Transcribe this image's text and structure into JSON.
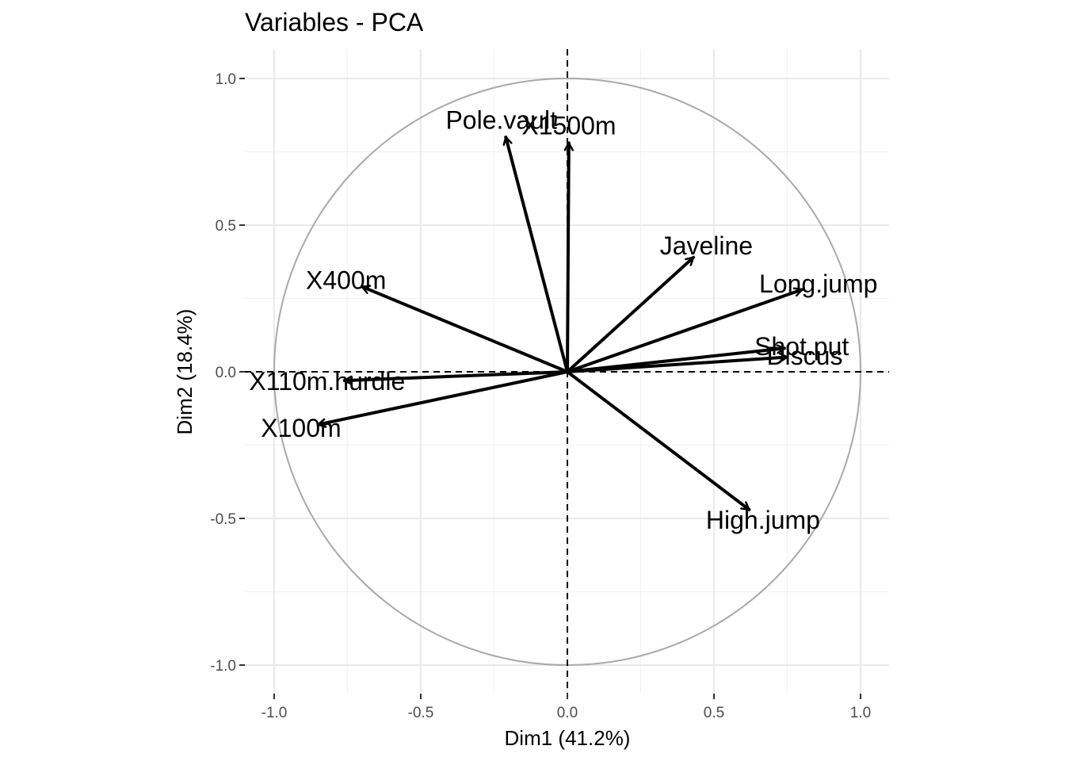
{
  "chart_data": {
    "type": "scatter",
    "subtype": "pca-correlation-circle",
    "title": "Variables - PCA",
    "xlabel": "Dim1 (41.2%)",
    "ylabel": "Dim2 (18.4%)",
    "xlim": [
      -1.1,
      1.1
    ],
    "ylim": [
      -1.1,
      1.1
    ],
    "x_ticks": [
      -1.0,
      -0.5,
      0.0,
      0.5,
      1.0
    ],
    "y_ticks": [
      -1.0,
      -0.5,
      0.0,
      0.5,
      1.0
    ],
    "x_tick_labels": [
      "-1.0",
      "-0.5",
      "0.0",
      "0.5",
      "1.0"
    ],
    "y_tick_labels": [
      "-1.0",
      "-0.5",
      "0.0",
      "0.5",
      "1.0"
    ],
    "grid": true,
    "unit_circle": true,
    "colors": {
      "arrow": "#000000",
      "circle": "#a9a9a9",
      "grid": "#ebebeb",
      "tick_text": "#4d4d4d"
    },
    "variables": [
      {
        "name": "X100m",
        "x": -0.85,
        "y": -0.18
      },
      {
        "name": "Long.jump",
        "x": 0.8,
        "y": 0.28
      },
      {
        "name": "Shot.put",
        "x": 0.74,
        "y": 0.08
      },
      {
        "name": "High.jump",
        "x": 0.62,
        "y": -0.47
      },
      {
        "name": "X400m",
        "x": -0.7,
        "y": 0.29
      },
      {
        "name": "X110m.hurdle",
        "x": -0.76,
        "y": -0.03
      },
      {
        "name": "Discus",
        "x": 0.75,
        "y": 0.05
      },
      {
        "name": "Pole.vault",
        "x": -0.21,
        "y": 0.8
      },
      {
        "name": "Javeline",
        "x": 0.43,
        "y": 0.39
      },
      {
        "name": "X1500m",
        "x": 0.005,
        "y": 0.78
      }
    ]
  }
}
